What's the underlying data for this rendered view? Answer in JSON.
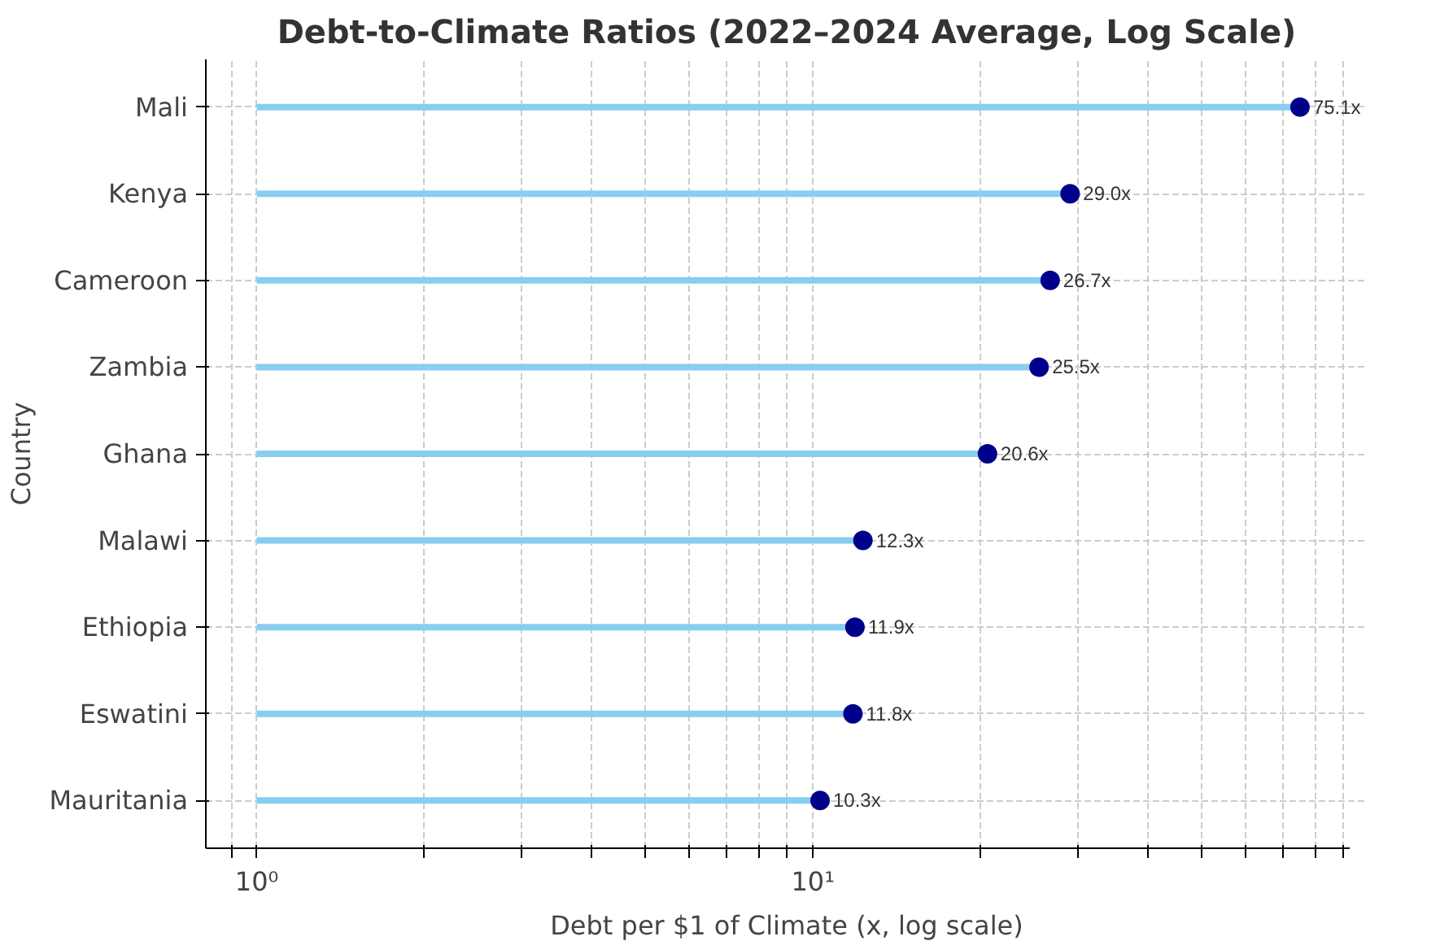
{
  "chart_data": {
    "type": "lollipop",
    "orientation": "horizontal",
    "title": "Debt-to-Climate Ratios (2022–2024 Average, Log Scale)",
    "xlabel": "Debt per $1 of Climate (x, log scale)",
    "ylabel": "Country",
    "categories": [
      "Mali",
      "Kenya",
      "Cameroon",
      "Zambia",
      "Ghana",
      "Malawi",
      "Ethiopia",
      "Eswatini",
      "Mauritania"
    ],
    "series": [
      {
        "color": "#00008b",
        "values": [
          75.1,
          29.0,
          26.7,
          25.5,
          20.6,
          12.3,
          11.9,
          11.8,
          10.3
        ],
        "value_labels": [
          "75.1x",
          "29.0x",
          "26.7x",
          "25.5x",
          "20.6x",
          "12.3x",
          "11.9x",
          "11.8x",
          "10.3x"
        ]
      }
    ],
    "log": "x",
    "xlim": [
      0.81,
      92
    ],
    "xticks": [
      {
        "value": 0.9,
        "label": null
      },
      {
        "value": 1,
        "label": "10⁰"
      },
      {
        "value": 2,
        "label": null
      },
      {
        "value": 3,
        "label": null
      },
      {
        "value": 4,
        "label": null
      },
      {
        "value": 5,
        "label": null
      },
      {
        "value": 6,
        "label": null
      },
      {
        "value": 7,
        "label": null
      },
      {
        "value": 8,
        "label": null
      },
      {
        "value": 9,
        "label": null
      },
      {
        "value": 10,
        "label": "10¹"
      },
      {
        "value": 20,
        "label": null
      },
      {
        "value": 30,
        "label": null
      },
      {
        "value": 40,
        "label": null
      },
      {
        "value": 50,
        "label": null
      },
      {
        "value": 60,
        "label": null
      },
      {
        "value": 70,
        "label": null
      },
      {
        "value": 80,
        "label": null
      },
      {
        "value": 90,
        "label": null
      }
    ],
    "grid": true,
    "marker": "circle"
  }
}
